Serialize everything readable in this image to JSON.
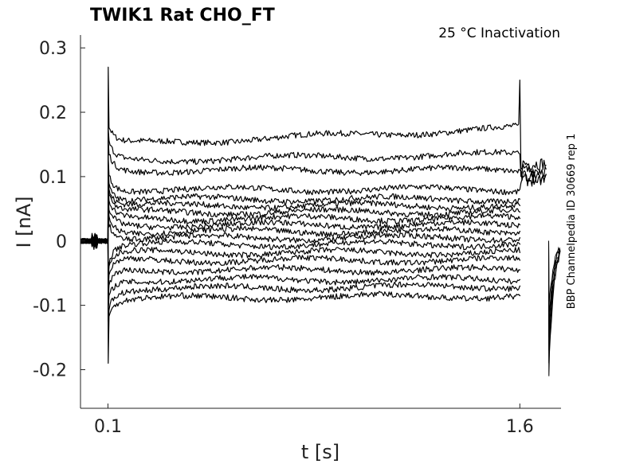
{
  "chart_data": {
    "type": "line",
    "title": "TWIK1  Rat  CHO_FT",
    "annotation": "25 °C  Inactivation",
    "side_label": "BBP Channelpedia ID 30669 rep 1",
    "xlabel": "t [s]",
    "ylabel": "I [nA]",
    "xlim": [
      0.0,
      1.75
    ],
    "ylim": [
      -0.26,
      0.32
    ],
    "x_ticks": [
      {
        "value": 0.1,
        "label": "0.1"
      },
      {
        "value": 1.6,
        "label": "1.6"
      }
    ],
    "y_ticks": [
      {
        "value": 0.3,
        "label": "0.3"
      },
      {
        "value": 0.2,
        "label": "0.2"
      },
      {
        "value": 0.1,
        "label": "0.1"
      },
      {
        "value": 0.0,
        "label": "0"
      },
      {
        "value": -0.1,
        "label": "-0.1"
      },
      {
        "value": -0.2,
        "label": "-0.2"
      }
    ],
    "grid": false,
    "pulse_start_s": 0.1,
    "pulse_end_s": 1.6,
    "tail_end_s": 1.7,
    "series": [
      {
        "start": 0.15,
        "end": 0.175,
        "tail": 0.12
      },
      {
        "start": 0.125,
        "end": 0.135,
        "tail": 0.11
      },
      {
        "start": 0.11,
        "end": 0.11,
        "tail": 0.1
      },
      {
        "start": 0.08,
        "end": 0.08,
        "tail": 0.095
      },
      {
        "start": 0.065,
        "end": 0.065
      },
      {
        "start": 0.055,
        "end": 0.055
      },
      {
        "start": 0.045,
        "end": 0.045
      },
      {
        "start": 0.035,
        "end": 0.035
      },
      {
        "start": 0.025,
        "end": 0.025
      },
      {
        "start": 0.015,
        "end": 0.015
      },
      {
        "start": 0.005,
        "end": 0.005
      },
      {
        "start": -0.005,
        "end": -0.005
      },
      {
        "start": -0.018,
        "end": -0.018
      },
      {
        "start": -0.03,
        "end": -0.03
      },
      {
        "start": -0.045,
        "end": -0.045
      },
      {
        "start": -0.06,
        "end": -0.06
      },
      {
        "start": -0.075,
        "end": -0.07
      },
      {
        "start": -0.09,
        "end": -0.085
      }
    ]
  }
}
